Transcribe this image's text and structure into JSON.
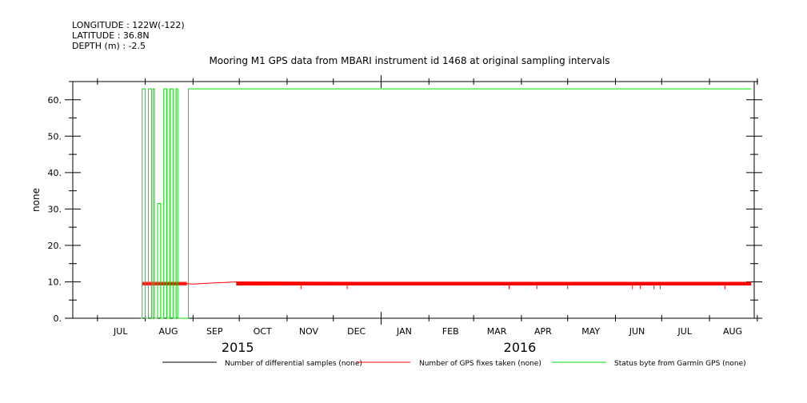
{
  "header": {
    "longitude": "LONGITUDE : 122W(-122)",
    "latitude": "LATITUDE : 36.8N",
    "depth": "DEPTH (m) : -2.5"
  },
  "chart_data": {
    "type": "line",
    "title": "Mooring M1 GPS data from MBARI instrument id 1468 at original sampling intervals",
    "xlabel": "",
    "ylabel": "none",
    "ylim": [
      0,
      65
    ],
    "xlim": [
      "2015-06-15",
      "2016-08-30"
    ],
    "y_ticks": [
      "0.",
      "10.",
      "20.",
      "30.",
      "40.",
      "50.",
      "60."
    ],
    "x_month_ticks": [
      {
        "date": "2015-07-01",
        "label": ""
      },
      {
        "date": "2015-08-01",
        "label": ""
      },
      {
        "date": "2015-09-01",
        "label": ""
      },
      {
        "date": "2015-10-01",
        "label": ""
      },
      {
        "date": "2015-11-01",
        "label": ""
      },
      {
        "date": "2015-12-01",
        "label": ""
      },
      {
        "date": "2016-01-01",
        "label": ""
      },
      {
        "date": "2016-02-01",
        "label": ""
      },
      {
        "date": "2016-03-01",
        "label": ""
      },
      {
        "date": "2016-04-01",
        "label": ""
      },
      {
        "date": "2016-05-01",
        "label": ""
      },
      {
        "date": "2016-06-01",
        "label": ""
      },
      {
        "date": "2016-07-01",
        "label": ""
      },
      {
        "date": "2016-08-01",
        "label": ""
      },
      {
        "date": "2016-09-01",
        "label": ""
      }
    ],
    "x_month_labels": [
      {
        "date": "2015-07-16",
        "label": "JUL"
      },
      {
        "date": "2015-08-16",
        "label": "AUG"
      },
      {
        "date": "2015-09-15",
        "label": "SEP"
      },
      {
        "date": "2015-10-16",
        "label": "OCT"
      },
      {
        "date": "2015-11-15",
        "label": "NOV"
      },
      {
        "date": "2015-12-16",
        "label": "DEC"
      },
      {
        "date": "2016-01-16",
        "label": "JAN"
      },
      {
        "date": "2016-02-15",
        "label": "FEB"
      },
      {
        "date": "2016-03-16",
        "label": "MAR"
      },
      {
        "date": "2016-04-15",
        "label": "APR"
      },
      {
        "date": "2016-05-16",
        "label": "MAY"
      },
      {
        "date": "2016-06-15",
        "label": "JUN"
      },
      {
        "date": "2016-07-16",
        "label": "JUL"
      },
      {
        "date": "2016-08-16",
        "label": "AUG"
      }
    ],
    "year_labels": [
      {
        "date": "2015-09-30",
        "label": "2015"
      },
      {
        "date": "2016-03-31",
        "label": "2016"
      }
    ],
    "series": [
      {
        "name": "Number of differential samples (none)",
        "color": "#000000",
        "kind": "line",
        "x": [],
        "y": []
      },
      {
        "name": "Number of GPS fixes taken (none)",
        "color": "#ff0000",
        "kind": "line",
        "x": [
          "2015-07-30",
          "2015-08-28",
          "2015-09-01",
          "2015-09-29",
          "2016-08-28"
        ],
        "y": [
          9.5,
          9.5,
          9.4,
          10.0,
          9.5
        ]
      },
      {
        "name": "Status byte from Garmin GPS (none)",
        "color": "#00dd00",
        "kind": "line",
        "x": [
          "2015-07-29",
          "2015-07-30",
          "2015-07-30",
          "2015-08-01",
          "2015-08-01",
          "2015-08-03",
          "2015-08-03",
          "2015-08-05",
          "2015-08-05",
          "2015-08-06",
          "2015-08-06",
          "2015-08-07",
          "2015-08-07",
          "2015-08-09",
          "2015-08-09",
          "2015-08-11",
          "2015-08-11",
          "2015-08-13",
          "2015-08-13",
          "2015-08-15",
          "2015-08-15",
          "2015-08-17",
          "2015-08-17",
          "2015-08-19",
          "2015-08-19",
          "2015-08-21",
          "2015-08-21",
          "2015-08-22",
          "2015-08-22",
          "2015-08-29",
          "2015-08-29",
          "2016-08-28"
        ],
        "y": [
          0,
          0,
          63,
          63,
          0,
          0,
          63,
          63,
          0,
          0,
          63,
          63,
          0,
          0,
          31.5,
          31.5,
          0,
          0,
          63,
          63,
          0,
          0,
          63,
          63,
          0,
          0,
          63,
          63,
          0,
          0,
          63,
          63
        ]
      }
    ],
    "red_bar": {
      "start": "2015-09-29",
      "end": "2016-08-28",
      "ymin": 9.0,
      "ymax": 10.0
    },
    "red_early_bars": {
      "start": "2015-07-30",
      "end": "2015-08-28",
      "ymin": 9.0,
      "ymax": 10.0
    },
    "red_dips": [
      "2015-11-10",
      "2015-12-10",
      "2016-03-24",
      "2016-04-11",
      "2016-05-01",
      "2016-06-12",
      "2016-06-17",
      "2016-06-26",
      "2016-06-30",
      "2016-08-11"
    ],
    "dip_y": 8.0,
    "legend_placement": "bottom",
    "grid": false
  }
}
